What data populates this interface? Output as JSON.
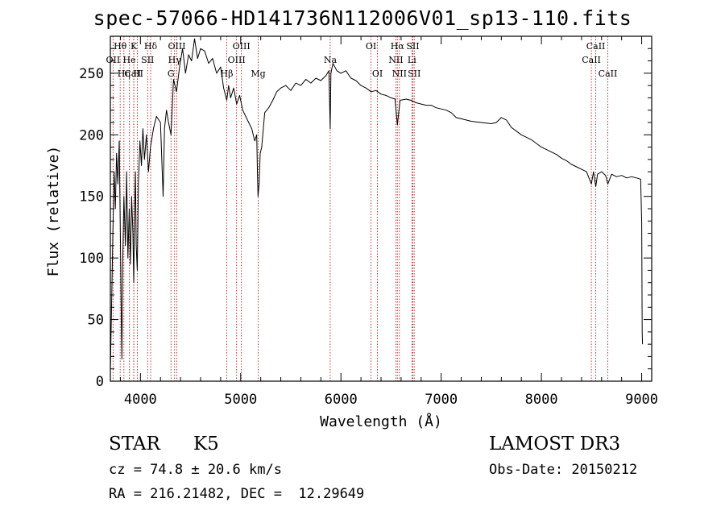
{
  "chart_data": {
    "type": "line",
    "title": "spec-57066-HD141736N112006V01_sp13-110.fits",
    "xlabel": "Wavelength (Å)",
    "ylabel": "Flux (relative)",
    "xlim": [
      3700,
      9100
    ],
    "ylim": [
      0,
      280
    ],
    "xticks": [
      4000,
      5000,
      6000,
      7000,
      8000,
      9000
    ],
    "yticks": [
      0,
      50,
      100,
      150,
      200,
      250
    ],
    "grid": false,
    "series": [
      {
        "points": [
          [
            3700,
            10
          ],
          [
            3712,
            60
          ],
          [
            3725,
            120
          ],
          [
            3738,
            170
          ],
          [
            3750,
            140
          ],
          [
            3762,
            185
          ],
          [
            3775,
            160
          ],
          [
            3788,
            195
          ],
          [
            3800,
            120
          ],
          [
            3808,
            60
          ],
          [
            3815,
            18
          ],
          [
            3822,
            90
          ],
          [
            3835,
            150
          ],
          [
            3850,
            110
          ],
          [
            3862,
            170
          ],
          [
            3875,
            100
          ],
          [
            3888,
            140
          ],
          [
            3900,
            95
          ],
          [
            3912,
            150
          ],
          [
            3925,
            120
          ],
          [
            3933,
            80
          ],
          [
            3940,
            130
          ],
          [
            3950,
            170
          ],
          [
            3958,
            110
          ],
          [
            3968,
            90
          ],
          [
            3980,
            160
          ],
          [
            3995,
            195
          ],
          [
            4010,
            175
          ],
          [
            4025,
            205
          ],
          [
            4040,
            180
          ],
          [
            4060,
            200
          ],
          [
            4080,
            170
          ],
          [
            4100,
            190
          ],
          [
            4130,
            205
          ],
          [
            4160,
            215
          ],
          [
            4200,
            210
          ],
          [
            4226,
            150
          ],
          [
            4240,
            205
          ],
          [
            4260,
            220
          ],
          [
            4280,
            210
          ],
          [
            4305,
            200
          ],
          [
            4330,
            245
          ],
          [
            4360,
            235
          ],
          [
            4390,
            255
          ],
          [
            4420,
            270
          ],
          [
            4450,
            250
          ],
          [
            4480,
            265
          ],
          [
            4510,
            260
          ],
          [
            4540,
            278
          ],
          [
            4570,
            262
          ],
          [
            4600,
            270
          ],
          [
            4640,
            268
          ],
          [
            4680,
            258
          ],
          [
            4720,
            262
          ],
          [
            4760,
            250
          ],
          [
            4800,
            255
          ],
          [
            4830,
            238
          ],
          [
            4861,
            228
          ],
          [
            4880,
            240
          ],
          [
            4900,
            230
          ],
          [
            4930,
            238
          ],
          [
            4960,
            225
          ],
          [
            4990,
            232
          ],
          [
            5020,
            220
          ],
          [
            5050,
            215
          ],
          [
            5080,
            210
          ],
          [
            5110,
            205
          ],
          [
            5140,
            195
          ],
          [
            5160,
            200
          ],
          [
            5167,
            168
          ],
          [
            5173,
            150
          ],
          [
            5184,
            160
          ],
          [
            5195,
            185
          ],
          [
            5210,
            190
          ],
          [
            5240,
            218
          ],
          [
            5280,
            222
          ],
          [
            5320,
            228
          ],
          [
            5360,
            235
          ],
          [
            5400,
            238
          ],
          [
            5450,
            240
          ],
          [
            5500,
            236
          ],
          [
            5550,
            242
          ],
          [
            5600,
            240
          ],
          [
            5650,
            245
          ],
          [
            5700,
            242
          ],
          [
            5750,
            246
          ],
          [
            5800,
            244
          ],
          [
            5850,
            248
          ],
          [
            5880,
            252
          ],
          [
            5893,
            205
          ],
          [
            5900,
            250
          ],
          [
            5920,
            258
          ],
          [
            5960,
            252
          ],
          [
            6000,
            250
          ],
          [
            6050,
            252
          ],
          [
            6100,
            246
          ],
          [
            6150,
            244
          ],
          [
            6200,
            240
          ],
          [
            6250,
            238
          ],
          [
            6300,
            235
          ],
          [
            6350,
            236
          ],
          [
            6400,
            233
          ],
          [
            6450,
            232
          ],
          [
            6500,
            230
          ],
          [
            6540,
            229
          ],
          [
            6563,
            208
          ],
          [
            6590,
            228
          ],
          [
            6650,
            229
          ],
          [
            6700,
            228
          ],
          [
            6750,
            226
          ],
          [
            6800,
            225
          ],
          [
            6850,
            224
          ],
          [
            6900,
            224
          ],
          [
            6950,
            222
          ],
          [
            7000,
            221
          ],
          [
            7050,
            220
          ],
          [
            7100,
            218
          ],
          [
            7150,
            214
          ],
          [
            7200,
            213
          ],
          [
            7300,
            211
          ],
          [
            7400,
            210
          ],
          [
            7500,
            209
          ],
          [
            7550,
            210
          ],
          [
            7600,
            214
          ],
          [
            7650,
            212
          ],
          [
            7700,
            206
          ],
          [
            7750,
            203
          ],
          [
            7800,
            200
          ],
          [
            7850,
            198
          ],
          [
            7900,
            196
          ],
          [
            7950,
            193
          ],
          [
            8000,
            190
          ],
          [
            8050,
            188
          ],
          [
            8100,
            186
          ],
          [
            8150,
            184
          ],
          [
            8200,
            181
          ],
          [
            8250,
            179
          ],
          [
            8300,
            176
          ],
          [
            8350,
            174
          ],
          [
            8400,
            172
          ],
          [
            8450,
            170
          ],
          [
            8498,
            160
          ],
          [
            8520,
            170
          ],
          [
            8542,
            158
          ],
          [
            8560,
            168
          ],
          [
            8600,
            170
          ],
          [
            8640,
            167
          ],
          [
            8662,
            160
          ],
          [
            8700,
            168
          ],
          [
            8750,
            166
          ],
          [
            8800,
            167
          ],
          [
            8850,
            165
          ],
          [
            8900,
            166
          ],
          [
            8950,
            165
          ],
          [
            8990,
            164
          ],
          [
            9000,
            128
          ],
          [
            9005,
            40
          ],
          [
            9008,
            30
          ]
        ]
      }
    ],
    "lines": [
      {
        "name": "Hθ",
        "x": 3798,
        "row": 0
      },
      {
        "name": "OII",
        "x": 3727,
        "row": 1
      },
      {
        "name": "CaII",
        "x": 3934,
        "row": 2
      },
      {
        "name": "K",
        "x": 3934,
        "row": 0
      },
      {
        "name": "He",
        "x": 3889,
        "row": 1
      },
      {
        "name": "Hη",
        "x": 3835,
        "row": 2
      },
      {
        "name": "Hδ",
        "x": 4102,
        "row": 0
      },
      {
        "name": "SII",
        "x": 4072,
        "row": 1
      },
      {
        "name": "H",
        "x": 3969,
        "row": 2
      },
      {
        "name": "OIII",
        "x": 4363,
        "row": 0
      },
      {
        "name": "Hγ",
        "x": 4341,
        "row": 1
      },
      {
        "name": "G",
        "x": 4305,
        "row": 2
      },
      {
        "name": "OIII",
        "x": 5007,
        "row": 0
      },
      {
        "name": "OIII",
        "x": 4959,
        "row": 1
      },
      {
        "name": "Hβ",
        "x": 4861,
        "row": 2
      },
      {
        "name": "Mg",
        "x": 5175,
        "row": 2
      },
      {
        "name": "Na",
        "x": 5893,
        "row": 1
      },
      {
        "name": "OI",
        "x": 6300,
        "row": 0
      },
      {
        "name": "OI",
        "x": 6364,
        "row": 2
      },
      {
        "name": "Hα",
        "x": 6563,
        "row": 0
      },
      {
        "name": "NII",
        "x": 6548,
        "row": 1
      },
      {
        "name": "NII",
        "x": 6583,
        "row": 2
      },
      {
        "name": "SII",
        "x": 6717,
        "row": 0
      },
      {
        "name": "Li",
        "x": 6708,
        "row": 1
      },
      {
        "name": "SII",
        "x": 6731,
        "row": 2
      },
      {
        "name": "CaII",
        "x": 8542,
        "row": 0
      },
      {
        "name": "CaII",
        "x": 8498,
        "row": 1
      },
      {
        "name": "CaII",
        "x": 8662,
        "row": 2
      }
    ]
  },
  "info": {
    "object_class": "STAR",
    "subclass": "K5",
    "survey": "LAMOST DR3",
    "cz": "cz = 74.8 ± 20.6 km/s",
    "obs_date": "Obs-Date: 20150212",
    "coords": "RA = 216.21482, DEC =  12.29649"
  },
  "colors": {
    "spectrum": "#000000",
    "line_marker": "#b22222",
    "axes": "#000000",
    "background": "#ffffff"
  }
}
